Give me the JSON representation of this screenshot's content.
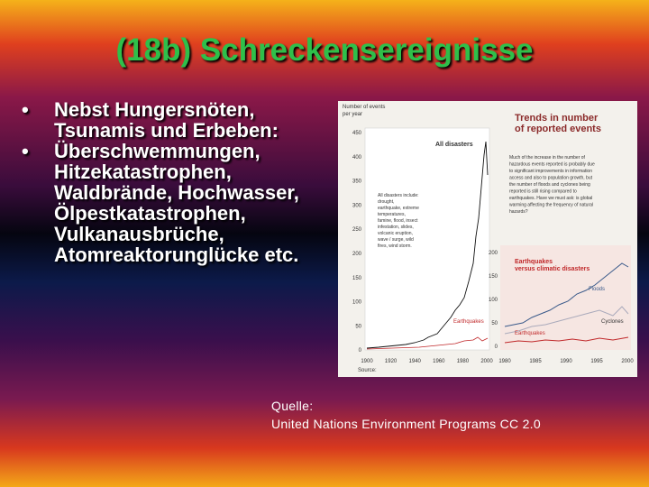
{
  "title": "(18b) Schreckensereignisse",
  "bullets": [
    "Nebst Hungersnöten, Tsunamis und Erbeben:",
    "Überschwemmungen, Hitzekatastrophen, Waldbrände, Hochwasser, Ölpestkatastrophen, Vulkanausbrüche, Atomreaktorunglücke etc."
  ],
  "credit": [
    "Quelle:",
    "United Nations Environment Programs CC 2.0"
  ],
  "figure": {
    "axis_label": [
      "Number of events",
      "per year"
    ],
    "title": [
      "Trends in number",
      "of reported events"
    ],
    "all_disasters": "All disasters",
    "all_disasters_note": [
      "All disasters include:",
      "drought,",
      "earthquake, extreme",
      "temperatures,",
      "famine, flood, insect",
      "infestation, slides,",
      "volcanic eruption,",
      "wave / surge, wild",
      "fires, wind storm."
    ],
    "note": [
      "Much of the increase in the number of",
      "hazardous events reported is probably due",
      "to significant improvements in information",
      "access and also to population growth, but",
      "the number of floods and cyclones being",
      "reported is still rising compared to",
      "earthquakes. Have we must ask: is global",
      "warming affecting the frequency of natural",
      "hazards?"
    ],
    "left_yticks": [
      "450",
      "400",
      "350",
      "300",
      "250",
      "200",
      "150",
      "100",
      "50",
      "0"
    ],
    "left_xticks": [
      "1900",
      "1920",
      "1940",
      "1960",
      "1980",
      "2000"
    ],
    "earthquakes_left": "Earthquakes",
    "right_title": [
      "Earthquakes",
      "versus climatic disasters"
    ],
    "right_yticks": [
      "200",
      "150",
      "100",
      "50",
      "0"
    ],
    "right_xticks": [
      "1980",
      "1985",
      "1990",
      "1995",
      "2000"
    ],
    "floods": "Floods",
    "cyclones": "Cyclones",
    "earthquakes_right": "Earthquakes",
    "source": "Source:"
  }
}
